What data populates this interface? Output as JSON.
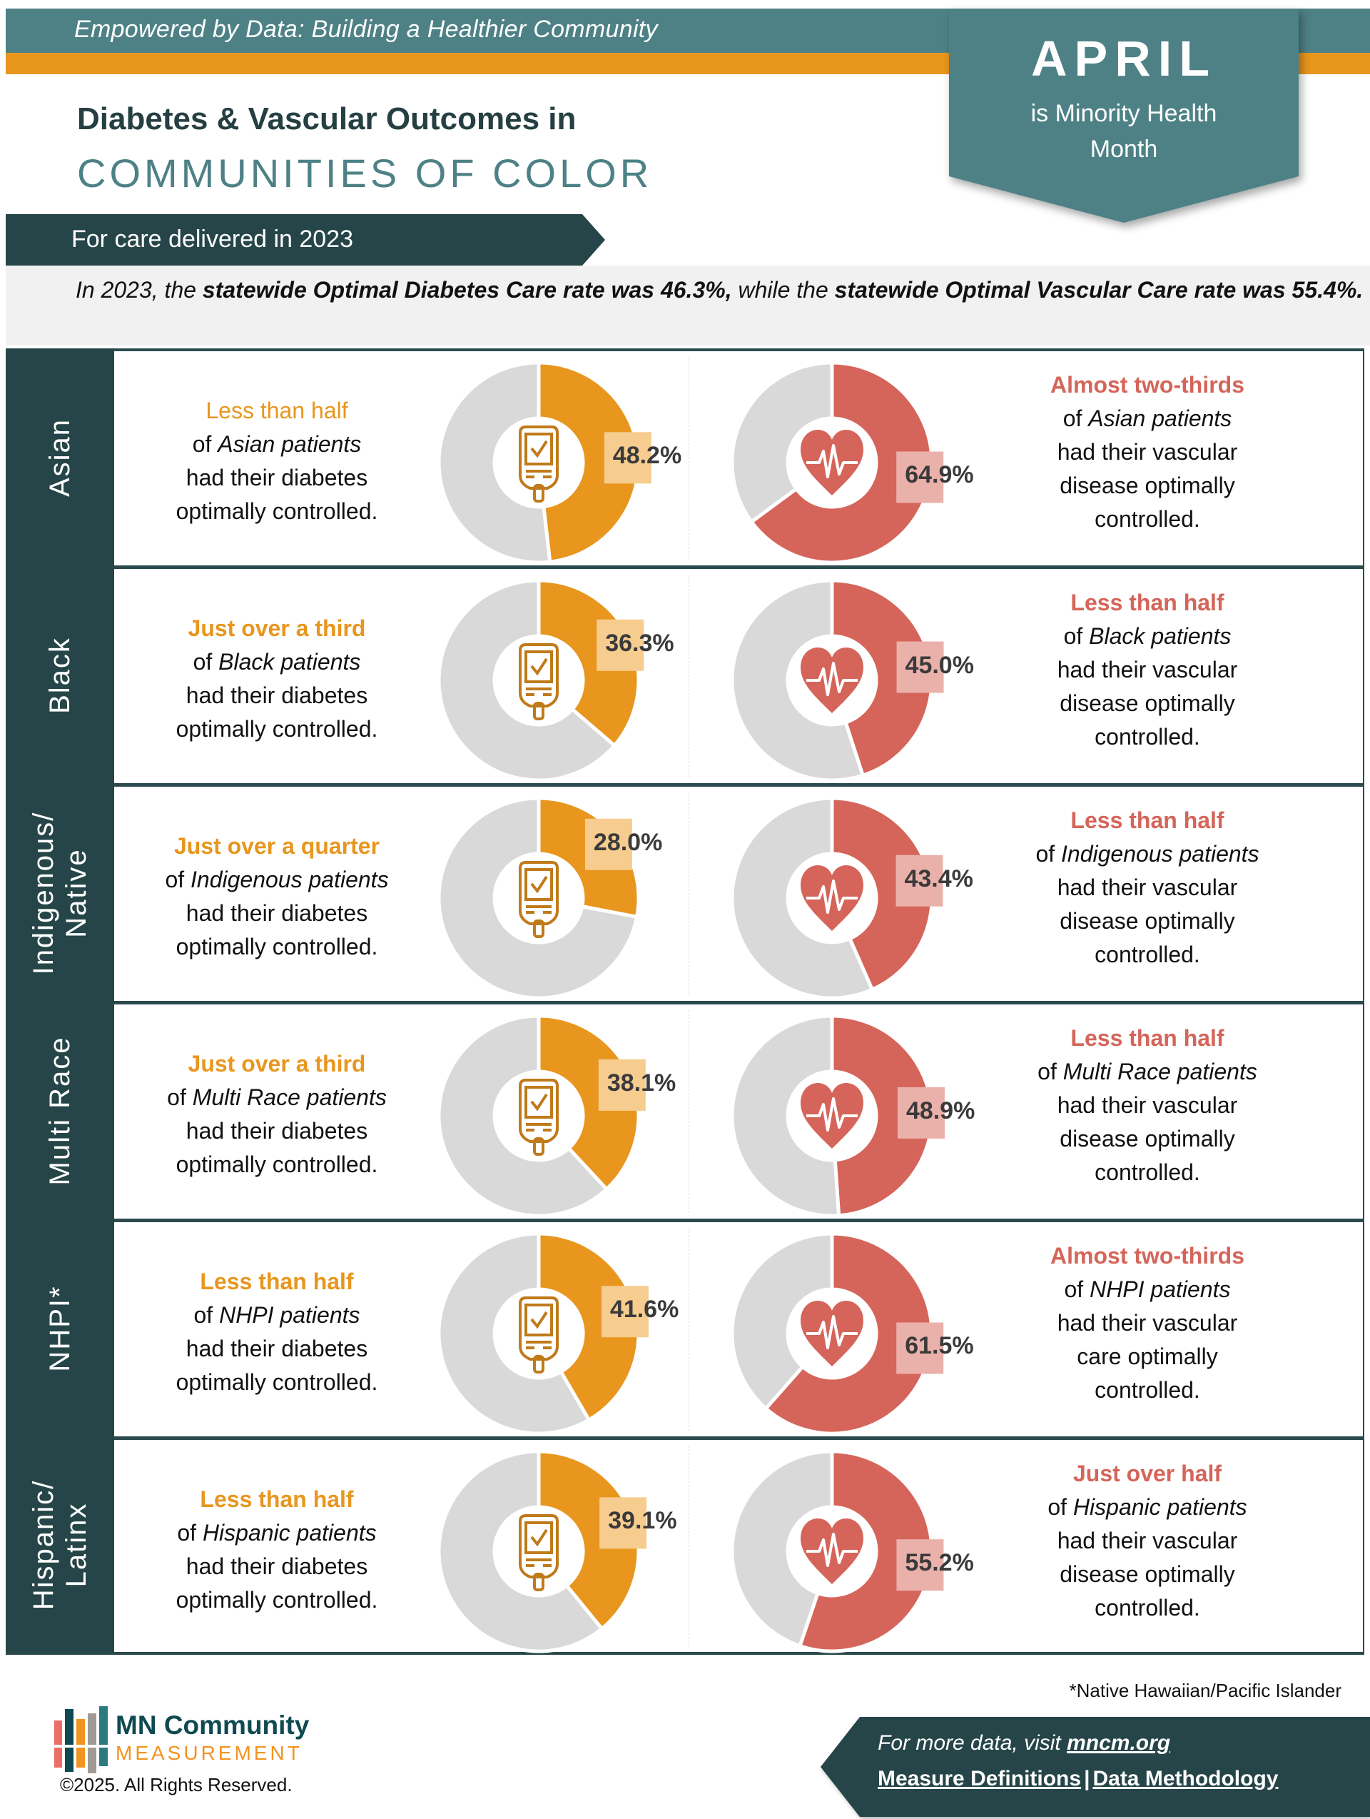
{
  "header": {
    "tagline": "Empowered by Data: Building a Healthier Community",
    "title_line1": "Diabetes & Vascular Outcomes in",
    "title_line2": "COMMUNITIES OF COLOR",
    "care_period": "For care delivered in 2023"
  },
  "ribbon": {
    "month": "APRIL",
    "line1": "is Minority Health",
    "line2": "Month"
  },
  "statement": {
    "part1": "In 2023, the ",
    "bold1": "statewide Optimal Diabetes Care rate was 46.3%,",
    "part2": " while the ",
    "bold2": "statewide Optimal Vascular Care rate was 55.4%."
  },
  "colors": {
    "teal": "#4d8185",
    "dark_teal": "#264548",
    "orange": "#e8961e",
    "red": "#d5655a",
    "gray": "#d9d9d9"
  },
  "chart_data": {
    "type": "pie",
    "title": "Diabetes & Vascular Outcomes in Communities of Color (care delivered in 2023)",
    "statewide": {
      "optimal_diabetes_care": 46.3,
      "optimal_vascular_care": 55.4
    },
    "categories": [
      "Asian",
      "Black",
      "Indigenous/Native",
      "Multi Race",
      "NHPI*",
      "Hispanic/Latinx"
    ],
    "series": [
      {
        "name": "Optimal Diabetes Care",
        "color": "#e8961e",
        "values": [
          48.2,
          36.3,
          28.0,
          38.1,
          41.6,
          39.1
        ]
      },
      {
        "name": "Optimal Vascular Care",
        "color": "#d5655a",
        "values": [
          64.9,
          45.0,
          43.4,
          48.9,
          61.5,
          55.2
        ]
      }
    ],
    "unit": "%"
  },
  "rows": [
    {
      "group": "Asian",
      "diabetes": {
        "pct": 48.2,
        "label": "48.2%",
        "headline": "Less than half",
        "of": "of ",
        "patients": "Asian patients",
        "line3": "had their diabetes",
        "line4": "optimally controlled."
      },
      "vascular": {
        "pct": 64.9,
        "label": "64.9%",
        "headline": "Almost two-thirds",
        "of": "of ",
        "patients": "Asian patients",
        "line3": "had their vascular",
        "line4": "disease optimally",
        "line5": "controlled."
      }
    },
    {
      "group": "Black",
      "diabetes": {
        "pct": 36.3,
        "label": "36.3%",
        "headline": "Just over a third",
        "of": "of ",
        "patients": "Black patients",
        "line3": "had their diabetes",
        "line4": "optimally controlled."
      },
      "vascular": {
        "pct": 45.0,
        "label": "45.0%",
        "headline": "Less than half",
        "of": "of ",
        "patients": "Black patients",
        "line3": "had their vascular",
        "line4": "disease optimally",
        "line5": "controlled."
      }
    },
    {
      "group": "Indigenous/ Native",
      "group_line1": "Indigenous/",
      "group_line2": "Native",
      "diabetes": {
        "pct": 28.0,
        "label": "28.0%",
        "headline": "Just over a quarter",
        "of": "of ",
        "patients": "Indigenous patients",
        "line3": "had their diabetes",
        "line4": "optimally controlled."
      },
      "vascular": {
        "pct": 43.4,
        "label": "43.4%",
        "headline": "Less than half",
        "of": "of ",
        "patients": "Indigenous patients",
        "line3": "had their vascular",
        "line4": "disease optimally",
        "line5": "controlled."
      }
    },
    {
      "group": "Multi Race",
      "diabetes": {
        "pct": 38.1,
        "label": "38.1%",
        "headline": "Just over a third",
        "of": "of ",
        "patients": "Multi Race patients",
        "line3": "had their diabetes",
        "line4": "optimally controlled."
      },
      "vascular": {
        "pct": 48.9,
        "label": "48.9%",
        "headline": "Less than half",
        "of": "of ",
        "patients": "Multi Race patients",
        "line3": "had their vascular",
        "line4": "disease optimally",
        "line5": "controlled."
      }
    },
    {
      "group": "NHPI*",
      "diabetes": {
        "pct": 41.6,
        "label": "41.6%",
        "headline": "Less than half",
        "of": "of ",
        "patients": "NHPI patients",
        "line3": "had their diabetes",
        "line4": "optimally controlled."
      },
      "vascular": {
        "pct": 61.5,
        "label": "61.5%",
        "headline": "Almost two-thirds",
        "of": "of ",
        "patients": "NHPI patients",
        "line3": "had their vascular",
        "line4": "care optimally",
        "line5": "controlled."
      }
    },
    {
      "group": "Hispanic/ Latinx",
      "group_line1": "Hispanic/",
      "group_line2": "Latinx",
      "diabetes": {
        "pct": 39.1,
        "label": "39.1%",
        "headline": "Less than half",
        "of": "of ",
        "patients": "Hispanic patients",
        "line3": "had their diabetes",
        "line4": "optimally controlled."
      },
      "vascular": {
        "pct": 55.2,
        "label": "55.2%",
        "headline": "Just over half",
        "of": "of ",
        "patients": "Hispanic patients",
        "line3": "had their vascular",
        "line4": "disease optimally",
        "line5": "controlled."
      }
    }
  ],
  "icons": {
    "diabetes": "glucose-meter-icon",
    "vascular": "heart-pulse-icon"
  },
  "footer": {
    "footnote": "*Native Hawaiian/Pacific Islander",
    "logo_line1": "MN Community",
    "logo_line2": "MEASUREMENT",
    "copyright": "©2025. All Rights Reserved.",
    "cta_text": "For more data, visit ",
    "cta_link": "mncm.org",
    "link1": "Measure Definitions",
    "separator": "|",
    "link2": "Data Methodology"
  }
}
